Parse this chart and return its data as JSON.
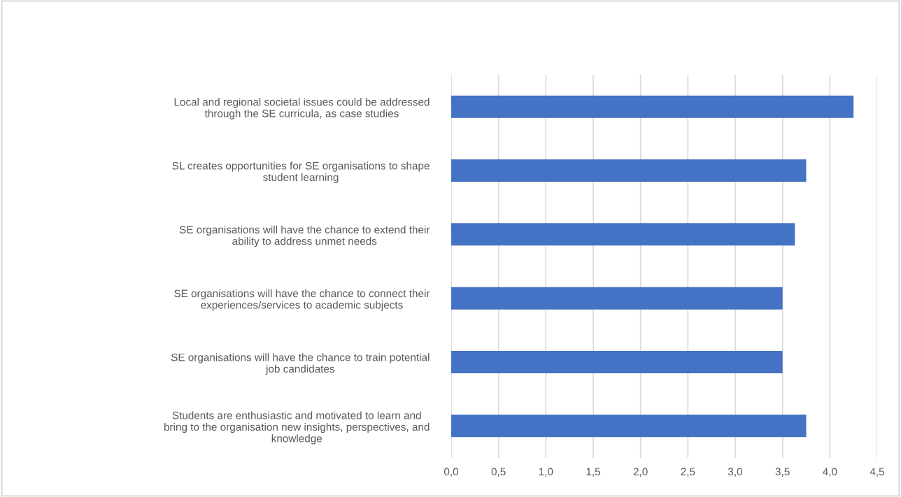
{
  "chart_data": {
    "type": "bar",
    "orientation": "horizontal",
    "categories": [
      "Local and regional societal issues could be addressed\nthrough the SE curricula, as case studies",
      "SL creates opportunities for SE organisations to shape\nstudent learning",
      "SE organisations will have the chance to extend their\nability to address unmet needs",
      "SE organisations will have the chance to connect their\nexperiences/services to academic subjects",
      "SE organisations will have the chance to train potential\njob candidates",
      "Students are enthusiastic and motivated to learn and\nbring to the organisation new insights, perspectives, and\nknowledge"
    ],
    "values": [
      4.25,
      3.75,
      3.63,
      3.5,
      3.5,
      3.75
    ],
    "color": "#4472c4",
    "xlim": [
      0,
      4.5
    ],
    "xticks": [
      {
        "value": 0,
        "label": "0,0"
      },
      {
        "value": 0.5,
        "label": "0,5"
      },
      {
        "value": 1,
        "label": "1,0"
      },
      {
        "value": 1.5,
        "label": "1,5"
      },
      {
        "value": 2,
        "label": "2,0"
      },
      {
        "value": 2.5,
        "label": "2,5"
      },
      {
        "value": 3,
        "label": "3,0"
      },
      {
        "value": 3.5,
        "label": "3,5"
      },
      {
        "value": 4,
        "label": "4,0"
      },
      {
        "value": 4.5,
        "label": "4,5"
      }
    ],
    "grid": "x"
  }
}
